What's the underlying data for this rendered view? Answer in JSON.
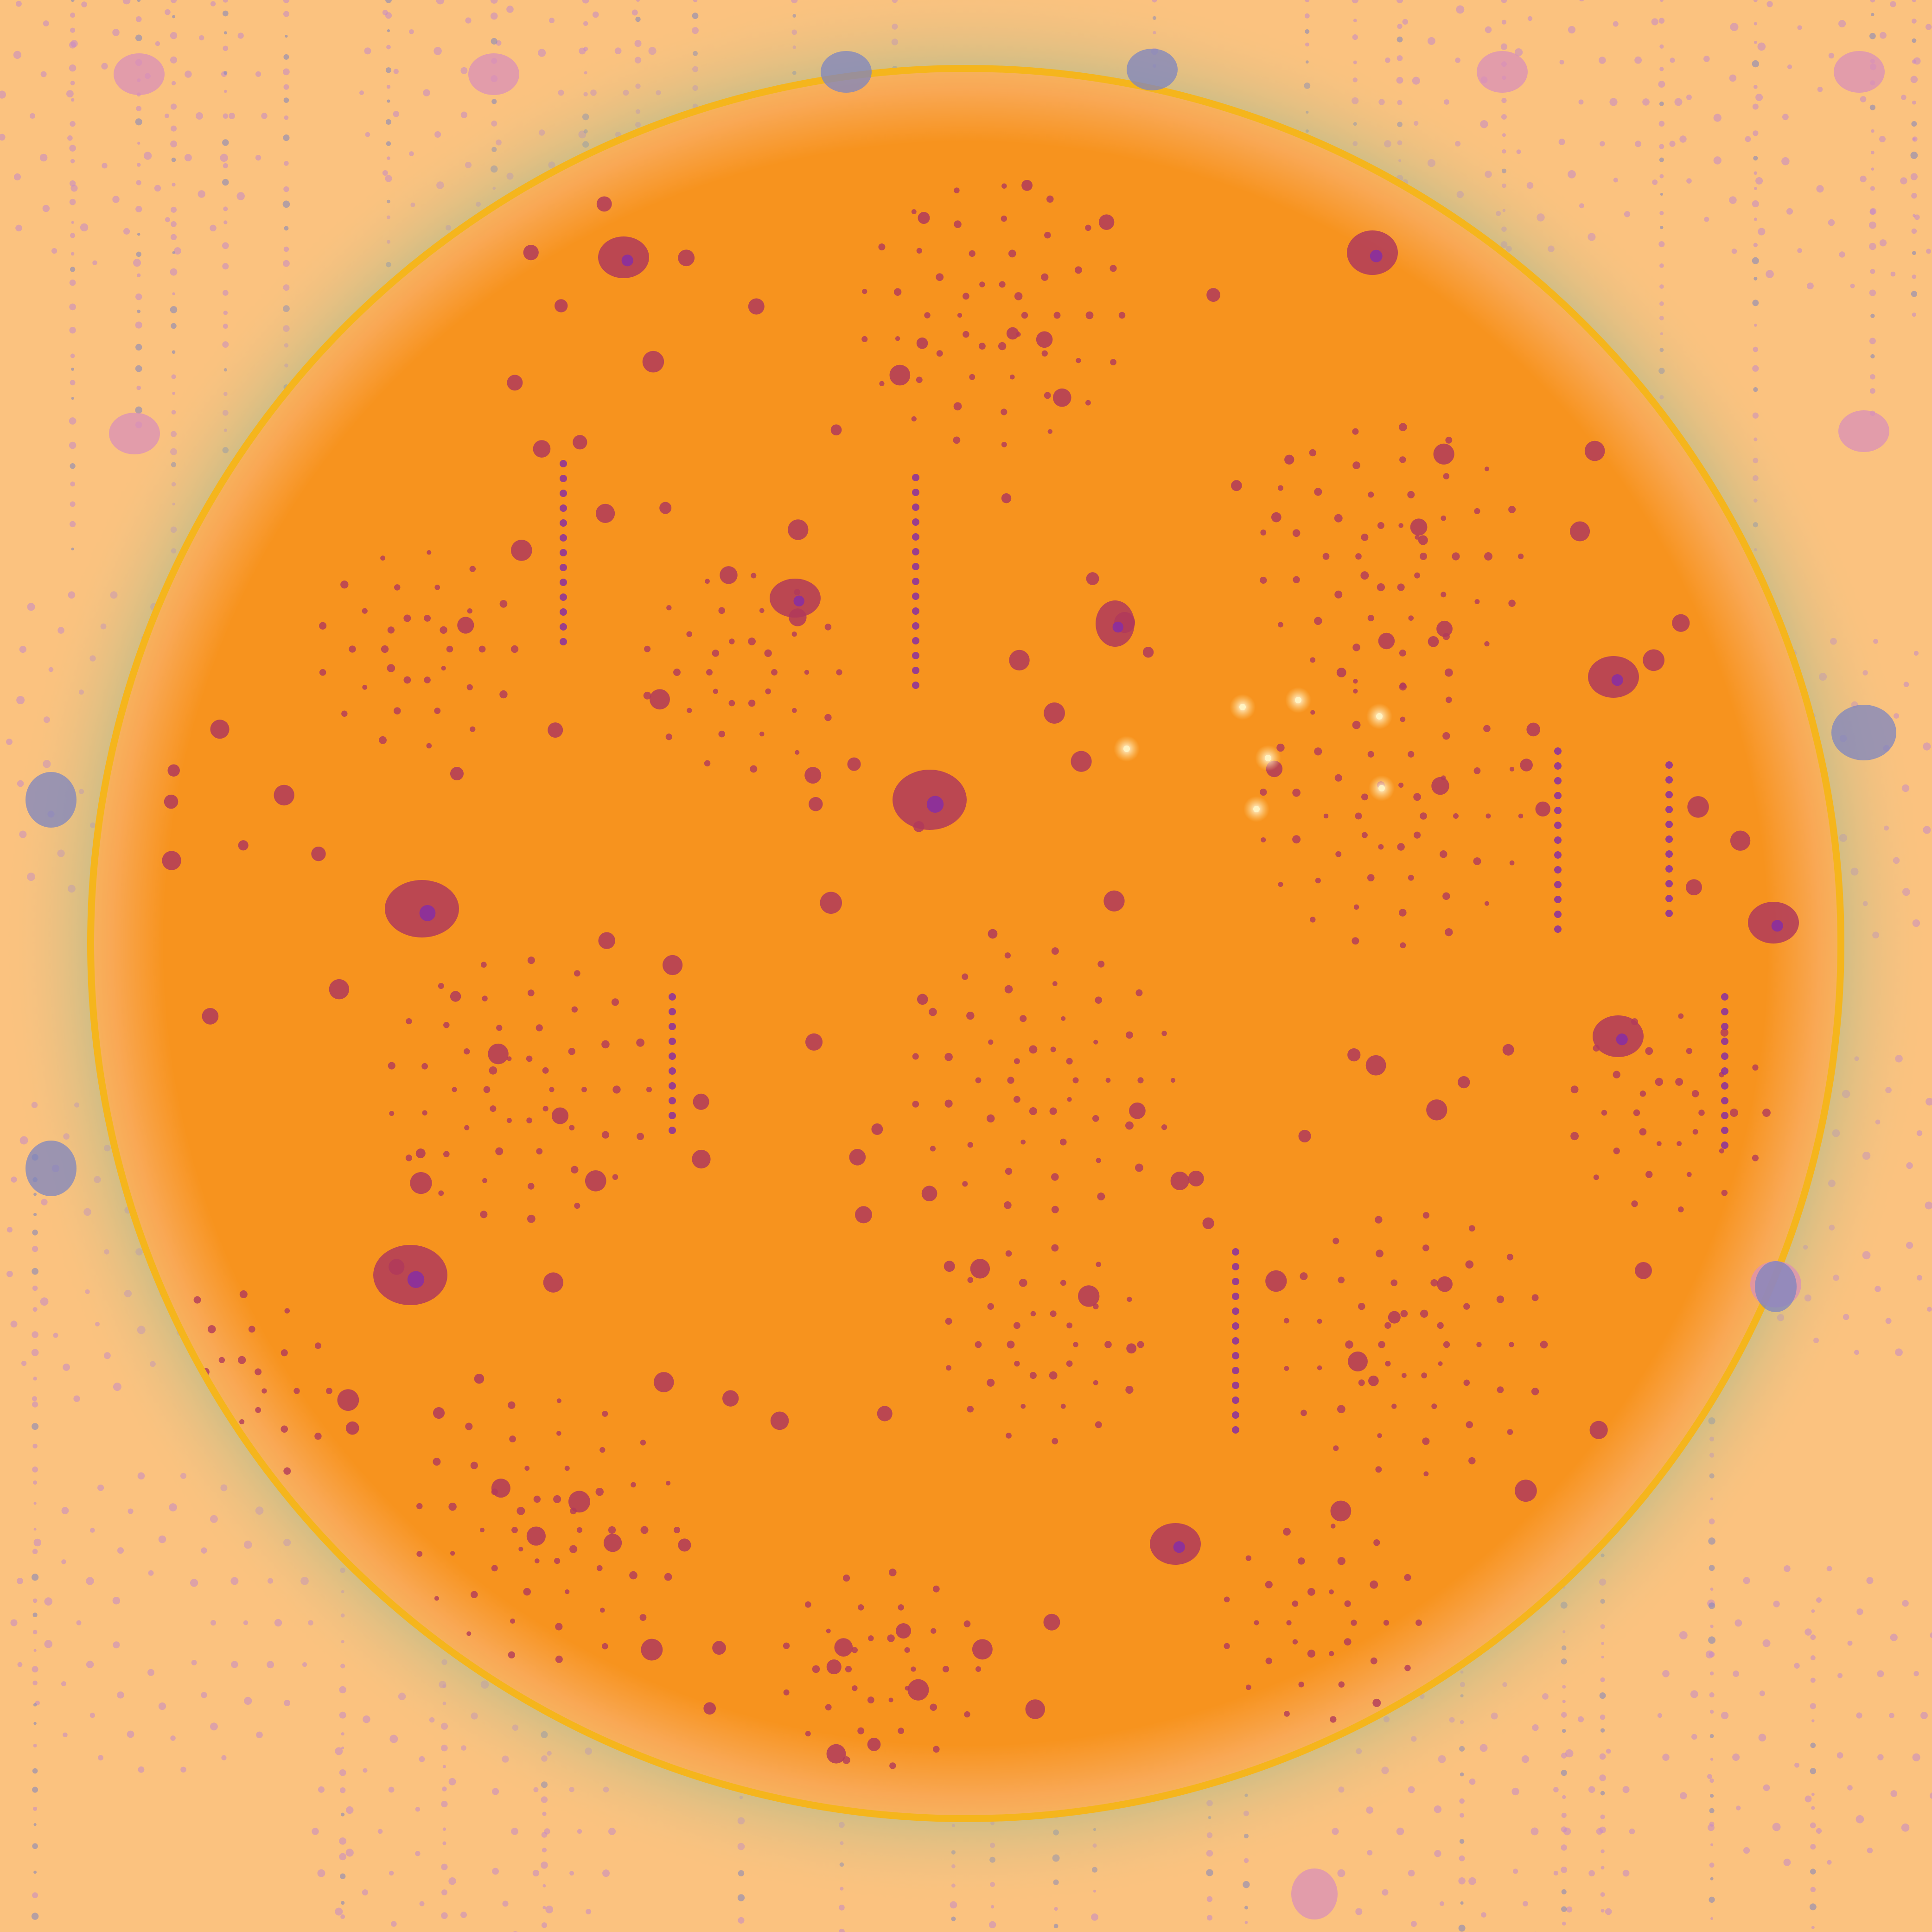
{
  "artwork": {
    "description_visible_text": "",
    "colors": {
      "background": "#FBC27F",
      "disc_fill": "#F7931E",
      "disc_rim": "#F5B51C",
      "halo_green": "#8FAE82",
      "dot_dark": "#B03A5B",
      "dot_purple": "#8A2FA0",
      "dot_light": "#C489C8",
      "blob_bg": "#D98FB8",
      "blob_blue": "#7C84C0",
      "sparkle": "#FFF3C2"
    },
    "icons": {
      "main_disc": "sun-disc",
      "pattern": "dot-concentric-circles",
      "blobs": "crescent-blobs"
    }
  }
}
